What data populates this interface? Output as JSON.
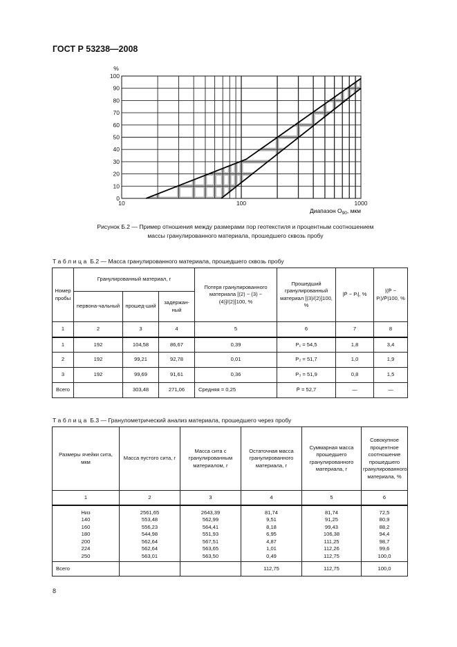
{
  "header": "ГОСТ Р 53238—2008",
  "figure": {
    "caption_line1": "Рисунок Б.2 — Пример отношения между размерами пор геотекстиля и процентным соотношением",
    "caption_line2": "массы гранулированного материала, прошедшего сквозь пробу"
  },
  "chart_data": {
    "type": "line",
    "xscale": "log",
    "xlim": [
      10,
      1000
    ],
    "ylim": [
      0,
      100
    ],
    "grid": true,
    "ylabel": "%",
    "xlabel": "Диапазон O",
    "xlabel_sub": "90",
    "xlabel_unit": ", мкм",
    "xticks": [
      "10",
      "100",
      "1000"
    ],
    "yticks": [
      "0",
      "10",
      "20",
      "30",
      "40",
      "50",
      "60",
      "70",
      "80",
      "90",
      "100"
    ],
    "series": [
      {
        "points": [
          [
            16,
            0
          ],
          [
            110,
            32
          ],
          [
            1000,
            98
          ]
        ]
      },
      {
        "points": [
          [
            68,
            0
          ],
          [
            1000,
            90
          ]
        ]
      }
    ],
    "shaded_band": true
  },
  "table2": {
    "title_prefix": "Таблица",
    "title": "Б.2 — Масса гранулированного материала, прошедшего сквозь пробу",
    "h": {
      "num": "Номер пробы",
      "gran": "Гранулированный материал, г",
      "init": "первона-чальный",
      "passed": "прошед-ший",
      "retained": "задержан-ный",
      "loss": "Потеря гранулированного материала [(2) − (3) − (4)]/(2)]100, %",
      "passed_pct": "Прошедший гранулированный материал [(3)/(2)]100, %",
      "dev": "|P̄ − Pᵢ|, %",
      "rel": "|(P̄ − Pᵢ)/P̄|100, %"
    },
    "colnums": [
      "1",
      "2",
      "3",
      "4",
      "5",
      "6",
      "7",
      "8"
    ],
    "rows": [
      [
        "1",
        "192",
        "104,58",
        "86,67",
        "0,39",
        "P₁ = 54,5",
        "1,8",
        "3,4"
      ],
      [
        "2",
        "192",
        "99,21",
        "92,78",
        "0,01",
        "P₂ = 51,7",
        "1,0",
        "1,9"
      ],
      [
        "3",
        "192",
        "99,69",
        "91,61",
        "0,36",
        "P₃ = 51,9",
        "0,8",
        "1,5"
      ]
    ],
    "total": [
      "Всего",
      "",
      "303,48",
      "271,06",
      "Средняя = 0,25",
      "P̄ = 52,7",
      "—",
      "—"
    ]
  },
  "table3": {
    "title_prefix": "Таблица",
    "title": "Б.3 — Гранулометрический анализ материала, прошедшего через пробу",
    "headers": [
      "Размеры ячейки сита, мкм",
      "Масса пустого сита, г",
      "Масса сита с гранулированным материалом, г",
      "Остаточная масса гранулированного материала, г",
      "Суммарная масса прошедшего гранулированного материала, г",
      "Совокупное процентное соотношение прошедшего гранулированного материала, %"
    ],
    "colnums": [
      "1",
      "2",
      "3",
      "4",
      "5",
      "6"
    ],
    "cols": [
      [
        "Низ",
        "140",
        "160",
        "180",
        "200",
        "224",
        "250"
      ],
      [
        "2561,65",
        "553,48",
        "556,23",
        "544,98",
        "562,64",
        "562,64",
        "563,01"
      ],
      [
        "2643,39",
        "562,99",
        "564,41",
        "551,93",
        "567,51",
        "563,65",
        "563,50"
      ],
      [
        "81,74",
        "9,51",
        "8,18",
        "6,95",
        "4,87",
        "1,01",
        "0,49"
      ],
      [
        "81,74",
        "91,25",
        "99,43",
        "106,38",
        "111,25",
        "112,26",
        "112,75"
      ],
      [
        "72,5",
        "80,9",
        "88,2",
        "94,4",
        "98,7",
        "99,6",
        "100,0"
      ]
    ],
    "total": [
      "Всего",
      "",
      "",
      "112,75",
      "112,75",
      "100,0"
    ]
  },
  "page_number": "8"
}
